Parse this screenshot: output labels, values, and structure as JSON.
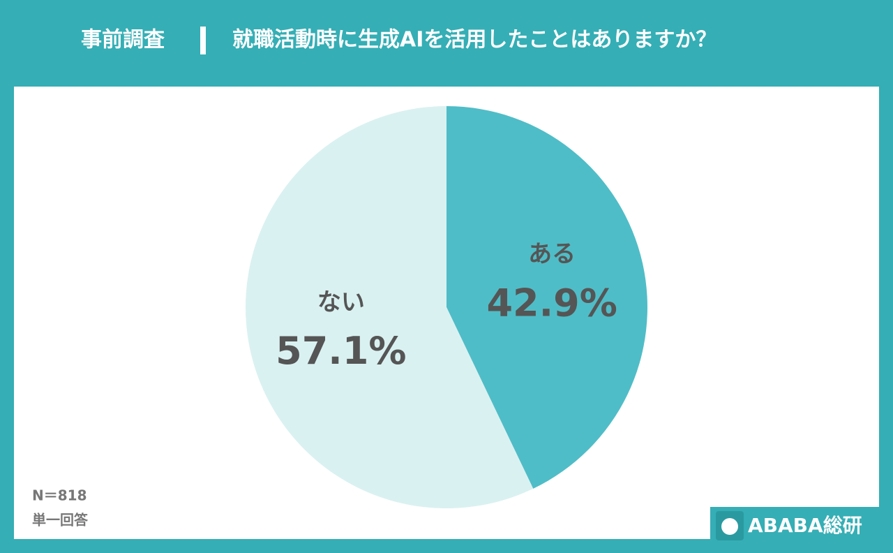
{
  "chart_data": {
    "type": "pie",
    "title": "事前調査",
    "subtitle": "就職活動時に生成AIを活用したことはありますか？",
    "categories": [
      "ある",
      "ない"
    ],
    "values": [
      42.9,
      57.1
    ],
    "value_labels": [
      "42.9%",
      "57.1%"
    ],
    "colors": [
      "#4fbdc7",
      "#daf1f1"
    ],
    "annotations": [
      "N＝818",
      "単一回答"
    ]
  },
  "footer": {
    "brand": "ABABA総研"
  }
}
